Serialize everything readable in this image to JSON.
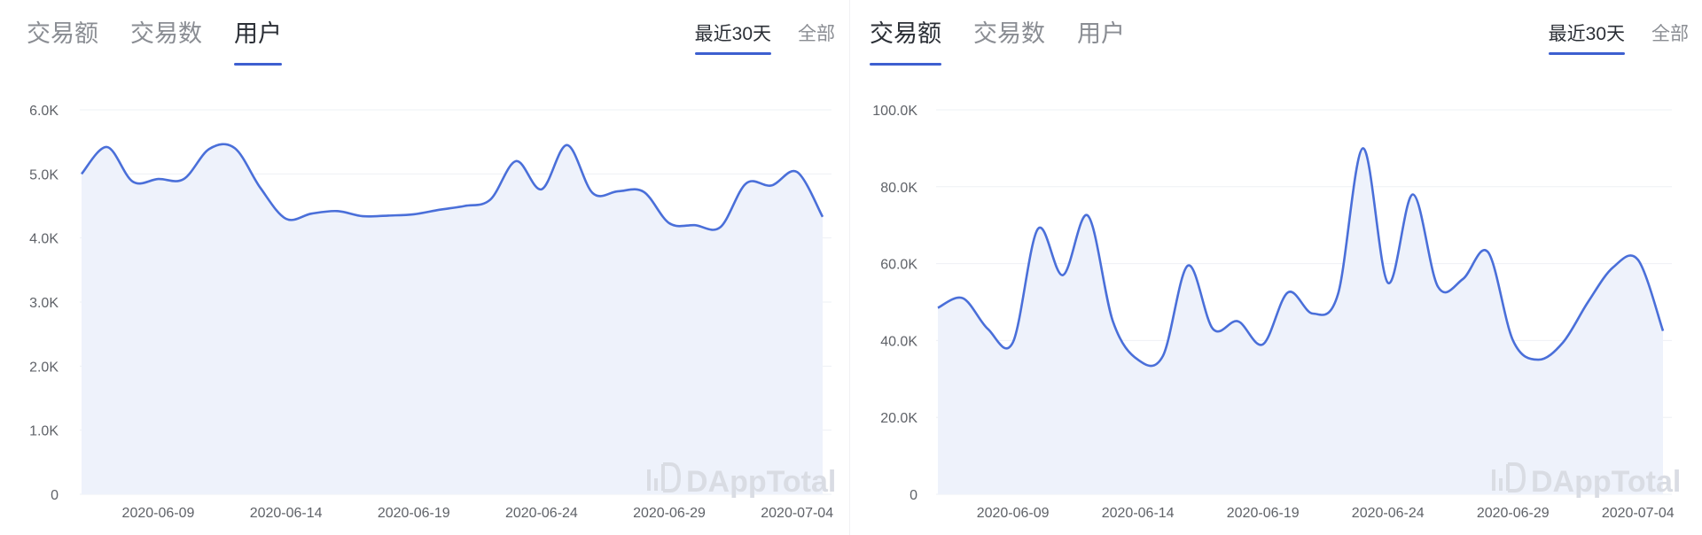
{
  "tabs_labels": [
    "交易额",
    "交易数",
    "用户"
  ],
  "range_labels": [
    "最近30天",
    "全部"
  ],
  "watermark": "DAppTotal",
  "colors": {
    "line": "#4a6fd9",
    "fill": "#eef2fb",
    "accent": "#3d5fd0",
    "grid": "#eef0f4"
  },
  "panels": [
    {
      "active_tab": 2,
      "active_range": 0,
      "chart_data": {
        "type": "area",
        "title": "",
        "xlabel": "",
        "ylabel": "",
        "ylim": [
          0,
          6000
        ],
        "y_ticks": [
          0,
          1000,
          2000,
          3000,
          4000,
          5000,
          6000
        ],
        "y_tick_labels": [
          "0",
          "1.0K",
          "2.0K",
          "3.0K",
          "4.0K",
          "5.0K",
          "6.0K"
        ],
        "x_tick_labels": [
          "2020-06-09",
          "2020-06-14",
          "2020-06-19",
          "2020-06-24",
          "2020-06-29",
          "2020-07-04"
        ],
        "x": [
          "2020-06-06",
          "2020-06-07",
          "2020-06-08",
          "2020-06-09",
          "2020-06-10",
          "2020-06-11",
          "2020-06-12",
          "2020-06-13",
          "2020-06-14",
          "2020-06-15",
          "2020-06-16",
          "2020-06-17",
          "2020-06-18",
          "2020-06-19",
          "2020-06-20",
          "2020-06-21",
          "2020-06-22",
          "2020-06-23",
          "2020-06-24",
          "2020-06-25",
          "2020-06-26",
          "2020-06-27",
          "2020-06-28",
          "2020-06-29",
          "2020-06-30",
          "2020-07-01",
          "2020-07-02",
          "2020-07-03",
          "2020-07-04",
          "2020-07-05"
        ],
        "values": [
          5000,
          5420,
          4880,
          4920,
          4920,
          5390,
          5400,
          4780,
          4300,
          4380,
          4420,
          4340,
          4350,
          4370,
          4440,
          4500,
          4600,
          5200,
          4760,
          5450,
          4700,
          4730,
          4720,
          4230,
          4200,
          4170,
          4850,
          4820,
          5030,
          4330
        ]
      }
    },
    {
      "active_tab": 0,
      "active_range": 0,
      "chart_data": {
        "type": "area",
        "title": "",
        "xlabel": "",
        "ylabel": "",
        "ylim": [
          0,
          100000
        ],
        "y_ticks": [
          0,
          20000,
          40000,
          60000,
          80000,
          100000
        ],
        "y_tick_labels": [
          "0",
          "20.0K",
          "40.0K",
          "60.0K",
          "80.0K",
          "100.0K"
        ],
        "x_tick_labels": [
          "2020-06-09",
          "2020-06-14",
          "2020-06-19",
          "2020-06-24",
          "2020-06-29",
          "2020-07-04"
        ],
        "x": [
          "2020-06-06",
          "2020-06-07",
          "2020-06-08",
          "2020-06-09",
          "2020-06-10",
          "2020-06-11",
          "2020-06-12",
          "2020-06-13",
          "2020-06-14",
          "2020-06-15",
          "2020-06-16",
          "2020-06-17",
          "2020-06-18",
          "2020-06-19",
          "2020-06-20",
          "2020-06-21",
          "2020-06-22",
          "2020-06-23",
          "2020-06-24",
          "2020-06-25",
          "2020-06-26",
          "2020-06-27",
          "2020-06-28",
          "2020-06-29",
          "2020-06-30",
          "2020-07-01",
          "2020-07-02",
          "2020-07-03",
          "2020-07-04",
          "2020-07-05"
        ],
        "values": [
          48500,
          51000,
          43000,
          39500,
          69000,
          57000,
          72500,
          45000,
          35000,
          36000,
          59500,
          43000,
          45000,
          39000,
          52500,
          47000,
          52000,
          90000,
          55000,
          78000,
          54000,
          56000,
          63000,
          40000,
          35000,
          39500,
          50000,
          59000,
          61000,
          42500
        ]
      }
    }
  ]
}
